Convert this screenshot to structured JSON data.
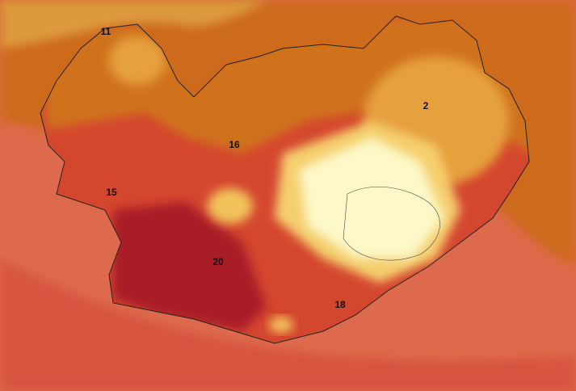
{
  "labels": [
    {
      "text": "11"
    },
    {
      "text": "2"
    },
    {
      "text": "16"
    },
    {
      "text": "15"
    },
    {
      "text": "20"
    },
    {
      "text": "18"
    }
  ]
}
